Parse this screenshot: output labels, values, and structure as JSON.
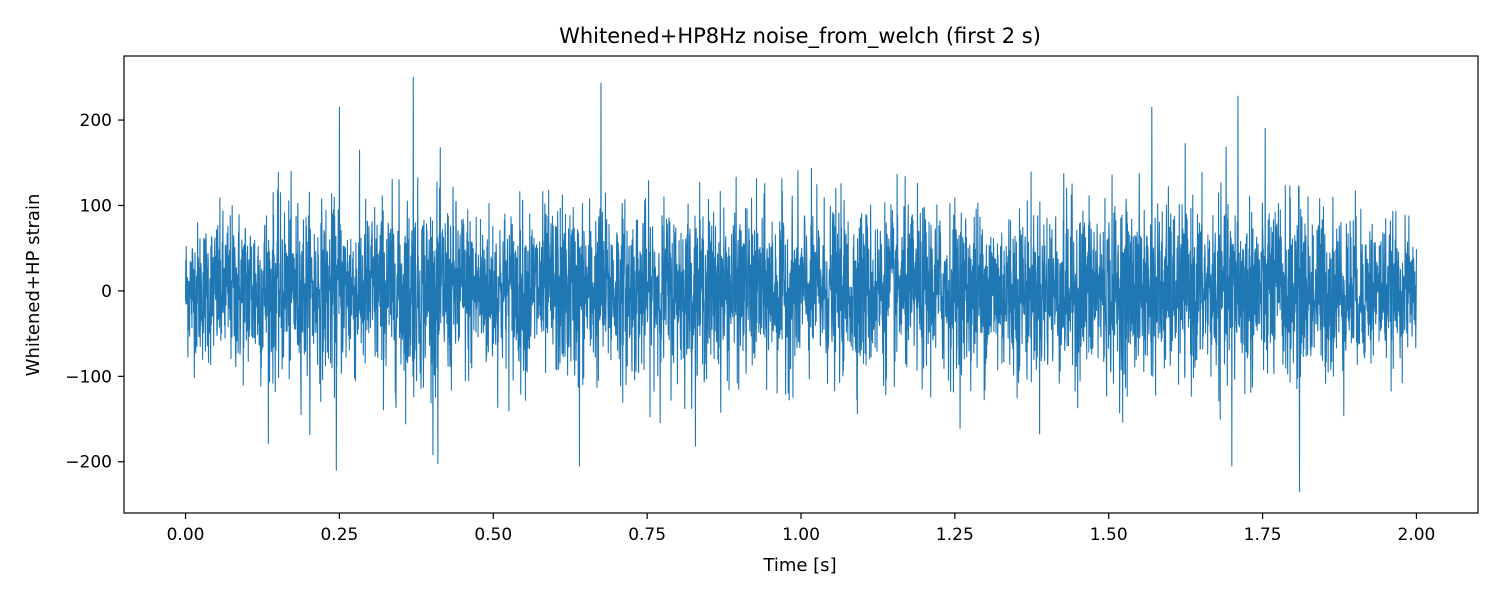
{
  "chart_data": {
    "type": "line",
    "title": "Whitened+HP8Hz noise_from_welch (first 2 s)",
    "xlabel": "Time [s]",
    "ylabel": "Whitened+HP strain",
    "xlim": [
      -0.1,
      2.1
    ],
    "ylim": [
      -260,
      275
    ],
    "xticks": [
      0.0,
      0.25,
      0.5,
      0.75,
      1.0,
      1.25,
      1.5,
      1.75,
      2.0
    ],
    "xtick_labels": [
      "0.00",
      "0.25",
      "0.50",
      "0.75",
      "1.00",
      "1.25",
      "1.50",
      "1.75",
      "2.00"
    ],
    "yticks": [
      -200,
      -100,
      0,
      100,
      200
    ],
    "ytick_labels": [
      "−200",
      "−100",
      "0",
      "100",
      "200"
    ],
    "grid": false,
    "series": [
      {
        "color": "#1f77b4",
        "envelope_x": [
          0.0,
          0.125,
          0.25,
          0.375,
          0.5,
          0.625,
          0.75,
          0.875,
          1.0,
          1.125,
          1.25,
          1.375,
          1.5,
          1.625,
          1.75,
          1.875,
          2.0
        ],
        "envelope_upper": [
          110,
          170,
          150,
          180,
          145,
          155,
          150,
          150,
          150,
          145,
          150,
          150,
          160,
          150,
          165,
          150,
          100
        ],
        "envelope_lower": [
          -120,
          -150,
          -150,
          -165,
          -150,
          -160,
          -155,
          -150,
          -150,
          -150,
          -150,
          -155,
          -160,
          -150,
          -165,
          -150,
          -110
        ],
        "peaks": [
          {
            "x": 0.25,
            "y": 215
          },
          {
            "x": 0.37,
            "y": 250
          },
          {
            "x": 0.675,
            "y": 243
          },
          {
            "x": 1.57,
            "y": 215
          },
          {
            "x": 1.71,
            "y": 228
          },
          {
            "x": 0.245,
            "y": -210
          },
          {
            "x": 0.41,
            "y": -202
          },
          {
            "x": 0.64,
            "y": -205
          },
          {
            "x": 1.81,
            "y": -235
          },
          {
            "x": 1.7,
            "y": -205
          }
        ]
      }
    ]
  }
}
